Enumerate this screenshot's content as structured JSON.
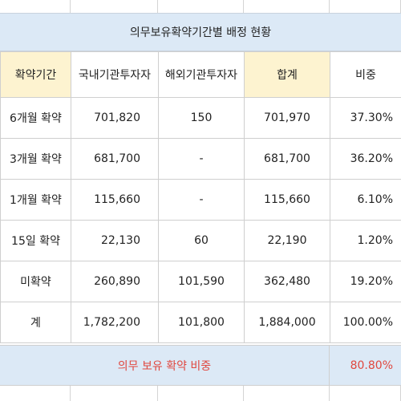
{
  "title": "의무보유확약기간별 배정 현황",
  "headers": [
    "확약기간",
    "국내기관투자자",
    "해외기관투자자",
    "합계",
    "비중"
  ],
  "rows": [
    [
      "6개월 확약",
      "701,820",
      "150",
      "701,970",
      "37.30%"
    ],
    [
      "3개월 확약",
      "681,700",
      "-",
      "681,700",
      "36.20%"
    ],
    [
      "1개월 확약",
      "115,660",
      "-",
      "115,660",
      "6.10%"
    ],
    [
      "15일 확약",
      "22,130",
      "60",
      "22,190",
      "1.20%"
    ],
    [
      "미확약",
      "260,890",
      "101,590",
      "362,480",
      "19.20%"
    ],
    [
      "계",
      "1,782,200",
      "101,800",
      "1,884,000",
      "100.00%"
    ]
  ],
  "footer": {
    "label": "의무 보유 확약 비중",
    "value": "80.80%"
  },
  "colors": {
    "title_bg": "#dce9f6",
    "header_highlight_bg": "#fdf3d0",
    "footer_text": "#e0473f"
  }
}
